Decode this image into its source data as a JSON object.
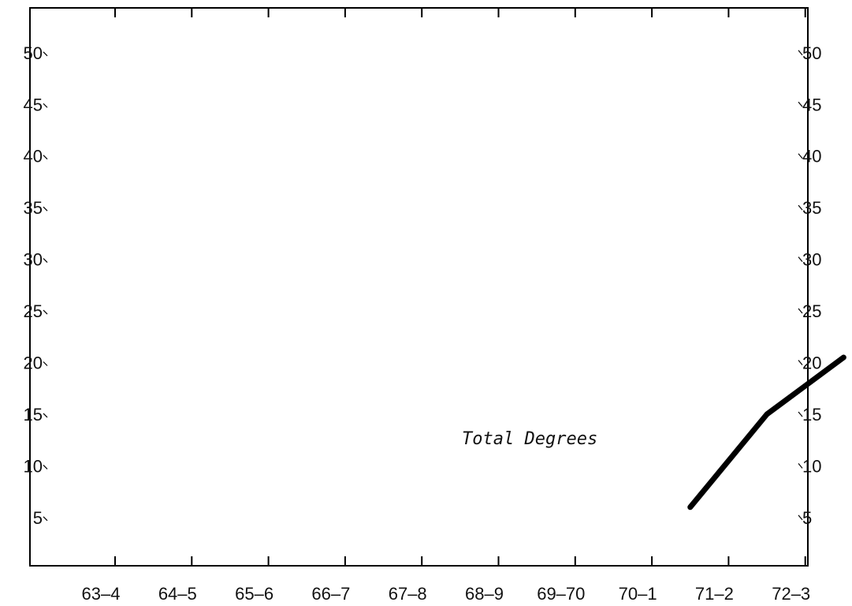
{
  "chart_data": {
    "type": "line",
    "title": "",
    "xlabel": "",
    "ylabel": "",
    "categories": [
      "63-4",
      "64-5",
      "65-6",
      "66-7",
      "67-8",
      "68-9",
      "69-70",
      "70-1",
      "71-2",
      "72-3"
    ],
    "ylim": [
      0,
      55
    ],
    "y_ticks": [
      5,
      10,
      15,
      20,
      25,
      30,
      35,
      40,
      45,
      50
    ],
    "y_tick_labels": [
      "5",
      "10",
      "15",
      "20",
      "25",
      "30",
      "35",
      "40",
      "45",
      "50"
    ],
    "grid": false,
    "series": [
      {
        "x": [
          "70-1",
          "71-2",
          "72-3"
        ],
        "values": [
          6,
          15,
          20.5
        ]
      }
    ],
    "annotations": [
      {
        "text": "Total Degrees"
      }
    ],
    "line_color": "#000000"
  }
}
